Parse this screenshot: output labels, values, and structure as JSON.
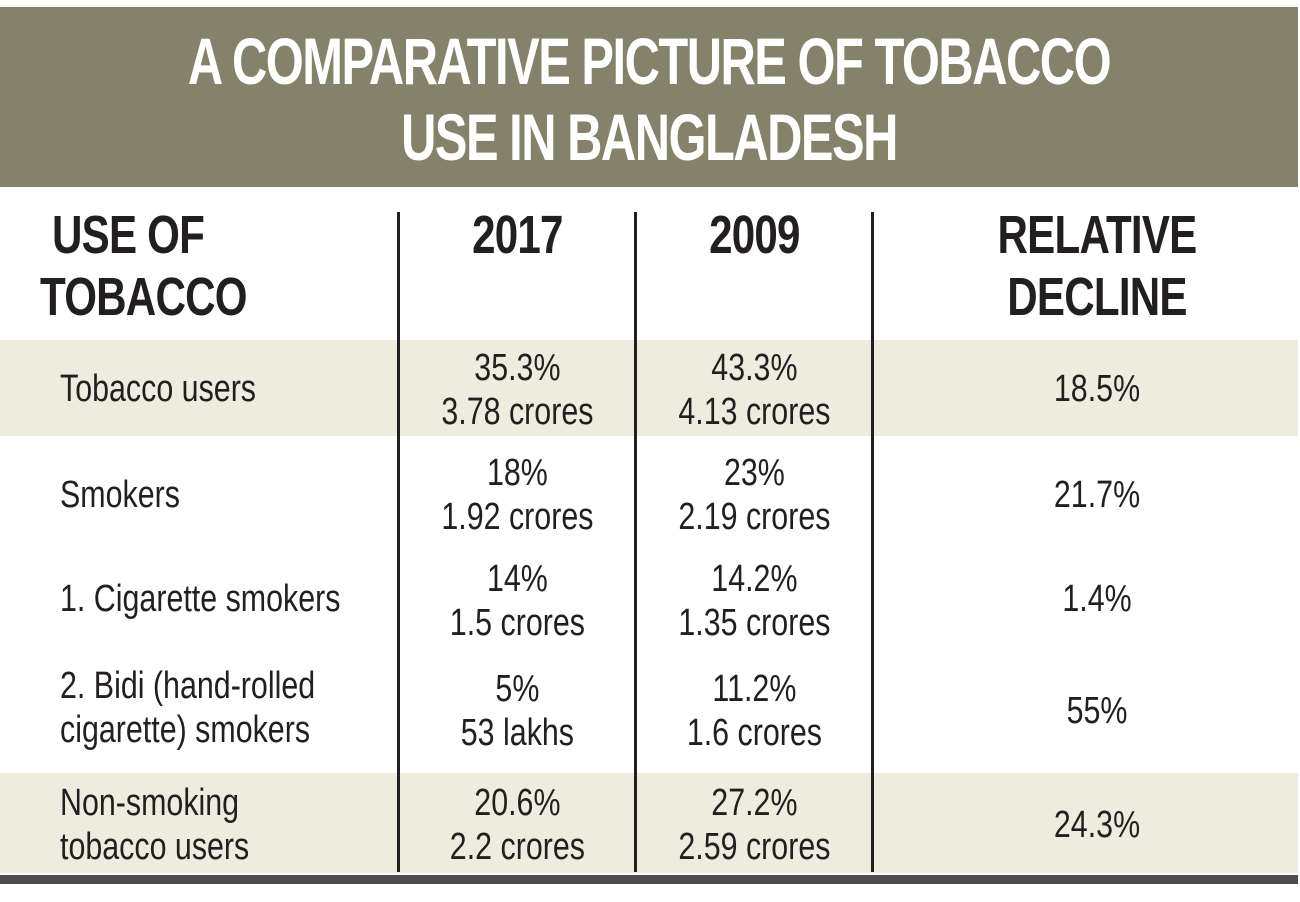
{
  "title": {
    "line1": "A COMPARATIVE PICTURE OF TOBACCO",
    "line2": "USE IN BANGLADESH"
  },
  "headers": {
    "use_line1": "USE OF",
    "use_line2": "TOBACCO",
    "year_2017": "2017",
    "year_2009": "2009",
    "decline_line1": "RELATIVE",
    "decline_line2": "DECLINE"
  },
  "rows": [
    {
      "label": [
        "Tobacco users"
      ],
      "y2017": [
        "35.3%",
        "3.78 crores"
      ],
      "y2009": [
        "43.3%",
        "4.13 crores"
      ],
      "decline": "18.5%",
      "shaded": true
    },
    {
      "label": [
        "Smokers"
      ],
      "y2017": [
        "18%",
        "1.92 crores"
      ],
      "y2009": [
        "23%",
        "2.19 crores"
      ],
      "decline": "21.7%",
      "shaded": false
    },
    {
      "label": [
        "1. Cigarette smokers"
      ],
      "y2017": [
        "14%",
        "1.5 crores"
      ],
      "y2009": [
        "14.2%",
        "1.35 crores"
      ],
      "decline": "1.4%",
      "shaded": false
    },
    {
      "label": [
        "2. Bidi (hand-rolled",
        "cigarette) smokers"
      ],
      "y2017": [
        "5%",
        "53 lakhs"
      ],
      "y2009": [
        "11.2%",
        "1.6 crores"
      ],
      "decline": "55%",
      "shaded": false
    },
    {
      "label": [
        "Non-smoking",
        "tobacco users"
      ],
      "y2017": [
        "20.6%",
        "2.2 crores"
      ],
      "y2009": [
        "27.2%",
        "2.59 crores"
      ],
      "decline": "24.3%",
      "shaded": true
    }
  ],
  "colors": {
    "banner": "#84826a",
    "row_band": "#ededdf",
    "text": "#231f20",
    "rule": "#4d4d4f"
  }
}
